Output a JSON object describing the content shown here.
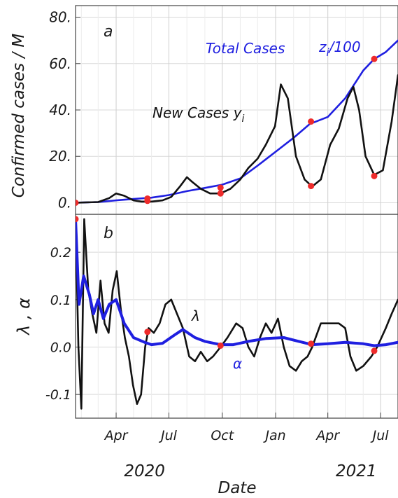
{
  "chart_data": [
    {
      "type": "line",
      "panel_label": "a",
      "ylabel": "Confirmed cases / M",
      "ylim": [
        -5,
        85
      ],
      "yticks": [
        0,
        20,
        40,
        60,
        80
      ],
      "ytick_labels": [
        "0.",
        "20.",
        "40.",
        "60.",
        "80."
      ],
      "x_range": [
        "2020-01-22",
        "2021-07-31"
      ],
      "grid": true,
      "annotations": {
        "total": "Total Cases",
        "total_formula_base": "z",
        "total_formula_sub": "i",
        "total_formula_tail": "/100",
        "new": "New Cases y",
        "new_sub": "i"
      },
      "series": [
        {
          "name": "Total Cases z_i/100",
          "color": "#1f1fe0",
          "points": [
            [
              "2020-01-22",
              0
            ],
            [
              "2020-03-01",
              0.3
            ],
            [
              "2020-04-01",
              1.0
            ],
            [
              "2020-05-01",
              1.6
            ],
            [
              "2020-06-01",
              2.2
            ],
            [
              "2020-07-01",
              3.3
            ],
            [
              "2020-08-01",
              5.0
            ],
            [
              "2020-09-01",
              6.4
            ],
            [
              "2020-10-01",
              7.8
            ],
            [
              "2020-11-01",
              10.5
            ],
            [
              "2020-12-01",
              16
            ],
            [
              "2021-01-01",
              22
            ],
            [
              "2021-02-01",
              28
            ],
            [
              "2021-03-01",
              34
            ],
            [
              "2021-04-01",
              37
            ],
            [
              "2021-05-01",
              45
            ],
            [
              "2021-06-01",
              57
            ],
            [
              "2021-06-20",
              62
            ],
            [
              "2021-07-10",
              65
            ],
            [
              "2021-07-31",
              70
            ]
          ]
        },
        {
          "name": "New Cases y_i",
          "color": "#111111",
          "points": [
            [
              "2020-01-22",
              0
            ],
            [
              "2020-03-01",
              0.3
            ],
            [
              "2020-03-20",
              2
            ],
            [
              "2020-04-01",
              4
            ],
            [
              "2020-04-15",
              3
            ],
            [
              "2020-05-01",
              1
            ],
            [
              "2020-05-15",
              0.5
            ],
            [
              "2020-06-01",
              0.5
            ],
            [
              "2020-06-20",
              1
            ],
            [
              "2020-07-05",
              2.5
            ],
            [
              "2020-07-20",
              7
            ],
            [
              "2020-08-01",
              11
            ],
            [
              "2020-08-10",
              9
            ],
            [
              "2020-08-25",
              6
            ],
            [
              "2020-09-10",
              4
            ],
            [
              "2020-09-28",
              4
            ],
            [
              "2020-10-15",
              6
            ],
            [
              "2020-11-01",
              10
            ],
            [
              "2020-11-15",
              15
            ],
            [
              "2020-12-01",
              19
            ],
            [
              "2020-12-15",
              25
            ],
            [
              "2020-12-31",
              33
            ],
            [
              "2021-01-10",
              51
            ],
            [
              "2021-01-22",
              45
            ],
            [
              "2021-02-05",
              20
            ],
            [
              "2021-02-20",
              10
            ],
            [
              "2021-03-05",
              7
            ],
            [
              "2021-03-20",
              10
            ],
            [
              "2021-04-05",
              25
            ],
            [
              "2021-04-20",
              32
            ],
            [
              "2021-05-05",
              45
            ],
            [
              "2021-05-15",
              50
            ],
            [
              "2021-05-25",
              40
            ],
            [
              "2021-06-05",
              20
            ],
            [
              "2021-06-20",
              12
            ],
            [
              "2021-07-05",
              14
            ],
            [
              "2021-07-20",
              35
            ],
            [
              "2021-07-31",
              55
            ]
          ]
        }
      ],
      "markers": [
        [
          "2020-01-22",
          0
        ],
        [
          "2020-05-25",
          0.8
        ],
        [
          "2020-05-25",
          1.8
        ],
        [
          "2020-09-28",
          4
        ],
        [
          "2020-09-28",
          6.5
        ],
        [
          "2021-03-03",
          7.2
        ],
        [
          "2021-03-03",
          35
        ],
        [
          "2021-06-20",
          11.5
        ],
        [
          "2021-06-20",
          62
        ]
      ]
    },
    {
      "type": "line",
      "panel_label": "b",
      "ylabel": "λ , α",
      "ylim": [
        -0.15,
        0.28
      ],
      "yticks": [
        -0.1,
        0.0,
        0.1,
        0.2
      ],
      "ytick_labels": [
        "-0.1",
        "0.0",
        "0.1",
        "0.2"
      ],
      "x_range": [
        "2020-01-22",
        "2021-07-31"
      ],
      "xticks": [
        "2020-04-01",
        "2020-07-01",
        "2020-10-01",
        "2021-01-01",
        "2021-04-01",
        "2021-07-01"
      ],
      "xtick_labels": [
        "Apr",
        "Jul",
        "Oct",
        "Jan",
        "Apr",
        "Jul"
      ],
      "year_labels": [
        {
          "date": "2020-05-20",
          "label": "2020"
        },
        {
          "date": "2021-05-20",
          "label": "2021"
        }
      ],
      "xlabel": "Date",
      "grid": true,
      "annotations": {
        "lambda": "λ",
        "alpha": "α"
      },
      "series": [
        {
          "name": "λ",
          "color": "#111111",
          "points": [
            [
              "2020-01-22",
              0.27
            ],
            [
              "2020-01-27",
              0.0
            ],
            [
              "2020-02-01",
              -0.13
            ],
            [
              "2020-02-06",
              0.27
            ],
            [
              "2020-02-13",
              0.12
            ],
            [
              "2020-02-20",
              0.07
            ],
            [
              "2020-02-27",
              0.03
            ],
            [
              "2020-03-05",
              0.14
            ],
            [
              "2020-03-12",
              0.05
            ],
            [
              "2020-03-19",
              0.03
            ],
            [
              "2020-03-26",
              0.12
            ],
            [
              "2020-04-02",
              0.16
            ],
            [
              "2020-04-09",
              0.08
            ],
            [
              "2020-04-16",
              0.02
            ],
            [
              "2020-04-23",
              -0.02
            ],
            [
              "2020-04-30",
              -0.08
            ],
            [
              "2020-05-07",
              -0.12
            ],
            [
              "2020-05-14",
              -0.1
            ],
            [
              "2020-05-21",
              0.0
            ],
            [
              "2020-05-27",
              0.04
            ],
            [
              "2020-06-05",
              0.03
            ],
            [
              "2020-06-15",
              0.05
            ],
            [
              "2020-06-25",
              0.09
            ],
            [
              "2020-07-05",
              0.1
            ],
            [
              "2020-07-15",
              0.07
            ],
            [
              "2020-07-25",
              0.04
            ],
            [
              "2020-08-05",
              -0.02
            ],
            [
              "2020-08-15",
              -0.03
            ],
            [
              "2020-08-25",
              -0.01
            ],
            [
              "2020-09-05",
              -0.03
            ],
            [
              "2020-09-15",
              -0.02
            ],
            [
              "2020-09-28",
              0.0
            ],
            [
              "2020-10-10",
              0.02
            ],
            [
              "2020-10-25",
              0.05
            ],
            [
              "2020-11-05",
              0.04
            ],
            [
              "2020-11-15",
              0.0
            ],
            [
              "2020-11-25",
              -0.02
            ],
            [
              "2020-12-05",
              0.02
            ],
            [
              "2020-12-15",
              0.05
            ],
            [
              "2020-12-25",
              0.03
            ],
            [
              "2021-01-05",
              0.06
            ],
            [
              "2021-01-15",
              0.0
            ],
            [
              "2021-01-25",
              -0.04
            ],
            [
              "2021-02-05",
              -0.05
            ],
            [
              "2021-02-15",
              -0.03
            ],
            [
              "2021-02-25",
              -0.02
            ],
            [
              "2021-03-05",
              0.0
            ],
            [
              "2021-03-20",
              0.05
            ],
            [
              "2021-04-05",
              0.05
            ],
            [
              "2021-04-20",
              0.05
            ],
            [
              "2021-05-01",
              0.04
            ],
            [
              "2021-05-10",
              -0.02
            ],
            [
              "2021-05-20",
              -0.05
            ],
            [
              "2021-06-01",
              -0.04
            ],
            [
              "2021-06-15",
              -0.02
            ],
            [
              "2021-06-25",
              0.0
            ],
            [
              "2021-07-10",
              0.04
            ],
            [
              "2021-07-20",
              0.07
            ],
            [
              "2021-07-31",
              0.1
            ]
          ]
        },
        {
          "name": "α",
          "color": "#1f1fe0",
          "points": [
            [
              "2020-01-22",
              0.27
            ],
            [
              "2020-01-28",
              0.09
            ],
            [
              "2020-02-05",
              0.15
            ],
            [
              "2020-02-15",
              0.11
            ],
            [
              "2020-02-22",
              0.07
            ],
            [
              "2020-03-01",
              0.1
            ],
            [
              "2020-03-10",
              0.06
            ],
            [
              "2020-03-20",
              0.09
            ],
            [
              "2020-04-01",
              0.1
            ],
            [
              "2020-04-15",
              0.05
            ],
            [
              "2020-05-01",
              0.02
            ],
            [
              "2020-05-20",
              0.01
            ],
            [
              "2020-06-01",
              0.005
            ],
            [
              "2020-06-20",
              0.008
            ],
            [
              "2020-07-10",
              0.025
            ],
            [
              "2020-07-25",
              0.037
            ],
            [
              "2020-08-15",
              0.02
            ],
            [
              "2020-09-01",
              0.012
            ],
            [
              "2020-09-28",
              0.005
            ],
            [
              "2020-10-20",
              0.005
            ],
            [
              "2020-11-15",
              0.012
            ],
            [
              "2020-12-15",
              0.018
            ],
            [
              "2021-01-15",
              0.02
            ],
            [
              "2021-02-10",
              0.012
            ],
            [
              "2021-03-05",
              0.005
            ],
            [
              "2021-04-01",
              0.007
            ],
            [
              "2021-05-01",
              0.01
            ],
            [
              "2021-06-01",
              0.007
            ],
            [
              "2021-06-20",
              0.003
            ],
            [
              "2021-07-10",
              0.005
            ],
            [
              "2021-07-31",
              0.01
            ]
          ]
        }
      ],
      "markers": [
        [
          "2020-01-22",
          0.27
        ],
        [
          "2020-05-25",
          0.032
        ],
        [
          "2020-09-28",
          0.003
        ],
        [
          "2021-03-03",
          0.007
        ],
        [
          "2021-06-20",
          -0.008
        ]
      ]
    }
  ]
}
